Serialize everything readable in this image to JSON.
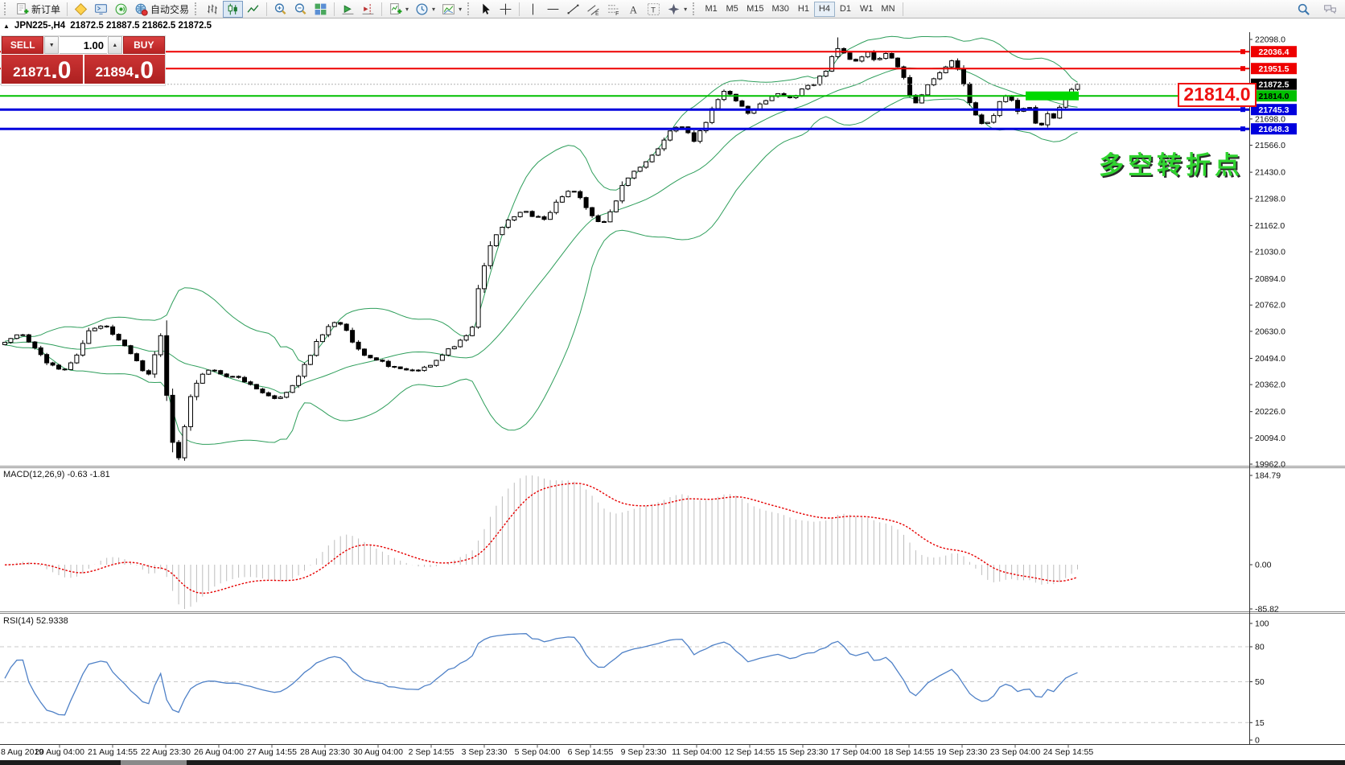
{
  "toolbar": {
    "groups": [
      {
        "grip": true,
        "items": [
          {
            "icon": "new-order-icon",
            "label": "新订单"
          }
        ]
      },
      {
        "grip": false,
        "items": [
          {
            "icon": "charts-profile-icon"
          },
          {
            "icon": "terminal-icon"
          },
          {
            "icon": "signals-icon"
          },
          {
            "icon": "autotrading-icon",
            "label": "自动交易"
          }
        ]
      },
      {
        "grip": true,
        "items": [
          {
            "icon": "bar-chart-icon"
          },
          {
            "icon": "candlestick-icon",
            "active": true
          },
          {
            "icon": "line-chart-icon"
          }
        ]
      },
      {
        "grip": false,
        "items": [
          {
            "icon": "zoom-in-icon"
          },
          {
            "icon": "zoom-out-icon"
          },
          {
            "icon": "tile-windows-icon"
          }
        ]
      },
      {
        "grip": false,
        "items": [
          {
            "icon": "auto-scroll-icon"
          },
          {
            "icon": "chart-shift-icon"
          }
        ]
      },
      {
        "grip": false,
        "items": [
          {
            "icon": "indicators-icon",
            "dropdown": true
          },
          {
            "icon": "periods-icon",
            "dropdown": true
          },
          {
            "icon": "templates-icon",
            "dropdown": true
          }
        ]
      },
      {
        "grip": true,
        "items": [
          {
            "icon": "cursor-icon"
          },
          {
            "icon": "crosshair-icon"
          }
        ]
      },
      {
        "grip": false,
        "items": [
          {
            "icon": "vertical-line-icon"
          },
          {
            "icon": "horizontal-line-icon"
          },
          {
            "icon": "trendline-icon"
          },
          {
            "icon": "equidistant-channel-icon"
          },
          {
            "icon": "fibonacci-icon"
          },
          {
            "icon": "text-icon"
          },
          {
            "icon": "text-label-icon"
          },
          {
            "icon": "shapes-icon",
            "dropdown": true
          }
        ]
      }
    ],
    "timeframes": [
      "M1",
      "M5",
      "M15",
      "M30",
      "H1",
      "H4",
      "D1",
      "W1",
      "MN"
    ],
    "active_timeframe": "H4",
    "right_icons": [
      "search-icon",
      "chat-icon"
    ]
  },
  "symbol_bar": {
    "collapse_icon": "▲",
    "symbol": "JPN225-,H4",
    "ohlc": "21872.5 21887.5 21862.5 21872.5"
  },
  "trade_panel": {
    "sell_label": "SELL",
    "buy_label": "BUY",
    "volume": "1.00",
    "sell_price_main": "21871",
    "sell_price_dec": ".0",
    "buy_price_main": "21894",
    "buy_price_dec": ".0"
  },
  "chart_data": {
    "main": {
      "type": "candlestick",
      "symbol": "JPN225-",
      "timeframe": "H4",
      "current": {
        "open": 21872.5,
        "high": 21887.5,
        "low": 21862.5,
        "close": 21872.5
      },
      "ylim": [
        19962.0,
        22098.0
      ],
      "y_axis_ticks": [
        "22098.0",
        "21698.0",
        "21566.0",
        "21430.0",
        "21298.0",
        "21162.0",
        "21030.0",
        "20894.0",
        "20762.0",
        "20630.0",
        "20494.0",
        "20362.0",
        "20226.0",
        "20094.0",
        "19962.0"
      ],
      "levels": [
        {
          "value": 22036.4,
          "label": "22036.4",
          "color": "#ee0000",
          "type": "hline"
        },
        {
          "value": 21951.5,
          "label": "21951.5",
          "color": "#ee0000",
          "type": "hline"
        },
        {
          "value": 21872.5,
          "label": "21872.5",
          "color": "#000000",
          "type": "current-price"
        },
        {
          "value": 21814.0,
          "label": "21814.0",
          "color": "#00c000",
          "type": "hline-highlighted"
        },
        {
          "value": 21745.3,
          "label": "21745.3",
          "color": "#0000dd",
          "type": "hline"
        },
        {
          "value": 21648.3,
          "label": "21648.3",
          "color": "#0000dd",
          "type": "hline"
        }
      ],
      "callout": {
        "text": "21814.0",
        "color": "#ee1111"
      },
      "annotation": {
        "text": "多空转折点",
        "color": "#2fd32f"
      },
      "x_labels": [
        "8 Aug 2019",
        "20 Aug 04:00",
        "21 Aug 14:55",
        "22 Aug 23:30",
        "26 Aug 04:00",
        "27 Aug 14:55",
        "28 Aug 23:30",
        "30 Aug 04:00",
        "2 Sep 14:55",
        "3 Sep 23:30",
        "5 Sep 04:00",
        "6 Sep 14:55",
        "9 Sep 23:30",
        "11 Sep 04:00",
        "12 Sep 14:55",
        "15 Sep 23:30",
        "17 Sep 04:00",
        "18 Sep 14:55",
        "19 Sep 23:30",
        "23 Sep 04:00",
        "24 Sep 14:55"
      ],
      "bollinger": {
        "period": 20,
        "deviation": 2,
        "color": "#2e9e5b"
      },
      "price_path": [
        [
          0,
          20570
        ],
        [
          25,
          20620
        ],
        [
          45,
          20540
        ],
        [
          60,
          20470
        ],
        [
          78,
          20430
        ],
        [
          95,
          20510
        ],
        [
          112,
          20645
        ],
        [
          128,
          20660
        ],
        [
          143,
          20610
        ],
        [
          160,
          20540
        ],
        [
          172,
          20460
        ],
        [
          185,
          20410
        ],
        [
          196,
          20560
        ],
        [
          203,
          20650
        ],
        [
          209,
          20150
        ],
        [
          216,
          20060
        ],
        [
          222,
          19998
        ],
        [
          229,
          20140
        ],
        [
          237,
          20300
        ],
        [
          248,
          20400
        ],
        [
          262,
          20445
        ],
        [
          278,
          20410
        ],
        [
          293,
          20400
        ],
        [
          308,
          20370
        ],
        [
          322,
          20340
        ],
        [
          336,
          20300
        ],
        [
          350,
          20290
        ],
        [
          364,
          20360
        ],
        [
          380,
          20470
        ],
        [
          394,
          20580
        ],
        [
          406,
          20645
        ],
        [
          419,
          20690
        ],
        [
          431,
          20630
        ],
        [
          443,
          20550
        ],
        [
          456,
          20500
        ],
        [
          471,
          20480
        ],
        [
          489,
          20445
        ],
        [
          506,
          20430
        ],
        [
          523,
          20440
        ],
        [
          541,
          20480
        ],
        [
          558,
          20540
        ],
        [
          573,
          20585
        ],
        [
          586,
          20625
        ],
        [
          597,
          20900
        ],
        [
          609,
          21050
        ],
        [
          621,
          21140
        ],
        [
          634,
          21200
        ],
        [
          649,
          21235
        ],
        [
          663,
          21210
        ],
        [
          677,
          21185
        ],
        [
          691,
          21270
        ],
        [
          704,
          21335
        ],
        [
          719,
          21320
        ],
        [
          733,
          21220
        ],
        [
          748,
          21160
        ],
        [
          761,
          21250
        ],
        [
          776,
          21380
        ],
        [
          791,
          21445
        ],
        [
          806,
          21485
        ],
        [
          821,
          21570
        ],
        [
          836,
          21645
        ],
        [
          849,
          21655
        ],
        [
          863,
          21590
        ],
        [
          876,
          21665
        ],
        [
          889,
          21785
        ],
        [
          903,
          21850
        ],
        [
          916,
          21790
        ],
        [
          929,
          21730
        ],
        [
          943,
          21765
        ],
        [
          956,
          21800
        ],
        [
          969,
          21835
        ],
        [
          981,
          21800
        ],
        [
          996,
          21840
        ],
        [
          1011,
          21875
        ],
        [
          1026,
          21935
        ],
        [
          1040,
          22060
        ],
        [
          1053,
          22010
        ],
        [
          1066,
          21990
        ],
        [
          1079,
          22030
        ],
        [
          1091,
          21985
        ],
        [
          1103,
          22040
        ],
        [
          1113,
          21990
        ],
        [
          1123,
          21915
        ],
        [
          1136,
          21760
        ],
        [
          1149,
          21845
        ],
        [
          1161,
          21905
        ],
        [
          1173,
          21950
        ],
        [
          1184,
          21990
        ],
        [
          1194,
          21915
        ],
        [
          1204,
          21800
        ],
        [
          1214,
          21705
        ],
        [
          1223,
          21660
        ],
        [
          1233,
          21700
        ],
        [
          1243,
          21780
        ],
        [
          1253,
          21830
        ],
        [
          1261,
          21760
        ],
        [
          1269,
          21720
        ],
        [
          1277,
          21800
        ],
        [
          1285,
          21690
        ],
        [
          1293,
          21660
        ],
        [
          1301,
          21725
        ],
        [
          1309,
          21700
        ],
        [
          1317,
          21760
        ],
        [
          1327,
          21840
        ],
        [
          1339,
          21872.5
        ]
      ]
    },
    "macd": {
      "type": "histogram+line",
      "label": "MACD(12,26,9)",
      "values": "-0.63 -1.81",
      "y_ticks": [
        "184.79",
        "0.00",
        "-85.82"
      ],
      "ylim": [
        -85.82,
        184.79
      ],
      "histogram_color": "#bdbdbd",
      "signal_color": "#e60000"
    },
    "rsi": {
      "type": "line",
      "label": "RSI(14)",
      "value": "52.9338",
      "y_ticks": [
        "100",
        "80",
        "50",
        "15",
        "0"
      ],
      "level_lines": [
        80,
        50,
        15
      ],
      "ylim": [
        0,
        100
      ],
      "line_color": "#4f81c7"
    }
  }
}
